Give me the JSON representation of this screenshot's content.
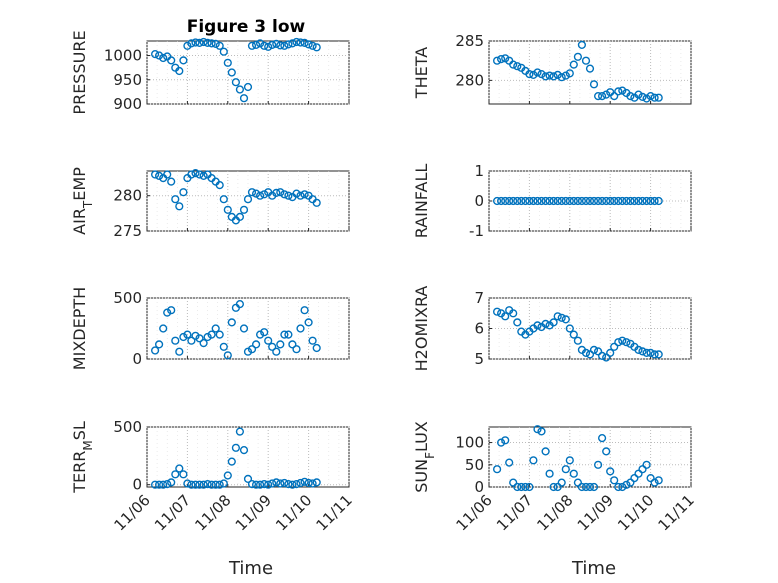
{
  "figure": {
    "title": "Figure 3 low"
  },
  "colors": {
    "series": "#0072BD",
    "axis": "#262626",
    "grid": "#bcbcbc"
  },
  "xaxis": {
    "label": "Time",
    "ticks": [
      "11/06",
      "11/07",
      "11/08",
      "11/09",
      "11/10",
      "11/11"
    ],
    "range": [
      "11/06",
      "11/11"
    ]
  },
  "chart_data": [
    {
      "type": "scatter",
      "title": "Figure 3 low",
      "ylabel": "PRESSURE",
      "ylim": [
        900,
        1030
      ],
      "yticks": [
        900,
        950,
        1000
      ],
      "yticklabels": [
        "900",
        "950",
        "1000"
      ],
      "grid": true,
      "x_dates": [
        "11/06",
        "11/11"
      ],
      "x": [
        6.2,
        6.3,
        6.4,
        6.5,
        6.6,
        6.7,
        6.8,
        6.9,
        7.0,
        7.1,
        7.2,
        7.3,
        7.4,
        7.5,
        7.6,
        7.7,
        7.8,
        7.9,
        8.0,
        8.1,
        8.2,
        8.3,
        8.4,
        8.5,
        8.6,
        8.7,
        8.8,
        8.9,
        9.0,
        9.1,
        9.2,
        9.3,
        9.4,
        9.5,
        9.6,
        9.7,
        9.8,
        9.9,
        10.0,
        10.1,
        10.2
      ],
      "y": [
        1003,
        1000,
        995,
        998,
        990,
        975,
        968,
        990,
        1020,
        1025,
        1027,
        1026,
        1028,
        1026,
        1025,
        1024,
        1020,
        1008,
        985,
        965,
        945,
        930,
        912,
        935,
        1020,
        1022,
        1025,
        1020,
        1018,
        1022,
        1024,
        1021,
        1020,
        1023,
        1025,
        1028,
        1027,
        1026,
        1023,
        1020,
        1017
      ]
    },
    {
      "type": "scatter",
      "title": "",
      "ylabel": "THETA",
      "ylim": [
        277,
        285
      ],
      "yticks": [
        280,
        285
      ],
      "yticklabels": [
        "280",
        "285"
      ],
      "grid": true,
      "x": [
        6.2,
        6.3,
        6.4,
        6.5,
        6.6,
        6.7,
        6.8,
        6.9,
        7.0,
        7.1,
        7.2,
        7.3,
        7.4,
        7.5,
        7.6,
        7.7,
        7.8,
        7.9,
        8.0,
        8.1,
        8.2,
        8.3,
        8.4,
        8.5,
        8.6,
        8.7,
        8.8,
        8.9,
        9.0,
        9.1,
        9.2,
        9.3,
        9.4,
        9.5,
        9.6,
        9.7,
        9.8,
        9.9,
        10.0,
        10.1,
        10.2
      ],
      "y": [
        282.5,
        282.7,
        282.8,
        282.5,
        282.0,
        281.8,
        281.6,
        281.2,
        280.8,
        280.7,
        281.0,
        280.8,
        280.5,
        280.6,
        280.5,
        280.7,
        280.4,
        280.6,
        280.9,
        282.0,
        283.0,
        284.5,
        282.5,
        281.5,
        279.5,
        278.0,
        278.0,
        278.2,
        278.5,
        278.0,
        278.6,
        278.7,
        278.4,
        278.0,
        277.8,
        278.2,
        277.9,
        277.7,
        278.0,
        277.8,
        277.8
      ]
    },
    {
      "type": "scatter",
      "title": "",
      "ylabel": "AIR_TEMP",
      "ylim": [
        275,
        283.5
      ],
      "yticks": [
        275,
        280
      ],
      "yticklabels": [
        "275",
        "280"
      ],
      "grid": true,
      "x": [
        6.2,
        6.3,
        6.4,
        6.5,
        6.6,
        6.7,
        6.8,
        6.9,
        7.0,
        7.1,
        7.2,
        7.3,
        7.4,
        7.5,
        7.6,
        7.7,
        7.8,
        7.9,
        8.0,
        8.1,
        8.2,
        8.3,
        8.4,
        8.5,
        8.6,
        8.7,
        8.8,
        8.9,
        9.0,
        9.1,
        9.2,
        9.3,
        9.4,
        9.5,
        9.6,
        9.7,
        9.8,
        9.9,
        10.0,
        10.1,
        10.2
      ],
      "y": [
        283.0,
        282.8,
        282.5,
        283.0,
        282.0,
        279.5,
        278.5,
        280.5,
        282.5,
        283.0,
        283.2,
        283.0,
        282.8,
        283.0,
        282.5,
        282.0,
        281.5,
        279.5,
        278.0,
        277.0,
        276.5,
        277.0,
        278.0,
        279.5,
        280.5,
        280.3,
        280.0,
        280.2,
        280.5,
        280.0,
        280.4,
        280.5,
        280.2,
        280.0,
        279.8,
        280.3,
        280.0,
        280.2,
        280.0,
        279.5,
        279.0
      ]
    },
    {
      "type": "scatter",
      "title": "",
      "ylabel": "RAINFALL",
      "ylim": [
        -1,
        1
      ],
      "yticks": [
        -1,
        0,
        1
      ],
      "yticklabels": [
        "-1",
        "0",
        "1"
      ],
      "grid": true,
      "x": [
        6.2,
        6.3,
        6.4,
        6.5,
        6.6,
        6.7,
        6.8,
        6.9,
        7.0,
        7.1,
        7.2,
        7.3,
        7.4,
        7.5,
        7.6,
        7.7,
        7.8,
        7.9,
        8.0,
        8.1,
        8.2,
        8.3,
        8.4,
        8.5,
        8.6,
        8.7,
        8.8,
        8.9,
        9.0,
        9.1,
        9.2,
        9.3,
        9.4,
        9.5,
        9.6,
        9.7,
        9.8,
        9.9,
        10.0,
        10.1,
        10.2
      ],
      "y": [
        0,
        0,
        0,
        0,
        0,
        0,
        0,
        0,
        0,
        0,
        0,
        0,
        0,
        0,
        0,
        0,
        0,
        0,
        0,
        0,
        0,
        0,
        0,
        0,
        0,
        0,
        0,
        0,
        0,
        0,
        0,
        0,
        0,
        0,
        0,
        0,
        0,
        0,
        0,
        0,
        0
      ]
    },
    {
      "type": "scatter",
      "title": "",
      "ylabel": "MIXDEPTH",
      "ylim": [
        0,
        500
      ],
      "yticks": [
        0,
        500
      ],
      "yticklabels": [
        "0",
        "500"
      ],
      "grid": true,
      "x": [
        6.2,
        6.3,
        6.4,
        6.5,
        6.6,
        6.7,
        6.8,
        6.9,
        7.0,
        7.1,
        7.2,
        7.3,
        7.4,
        7.5,
        7.6,
        7.7,
        7.8,
        7.9,
        8.0,
        8.1,
        8.2,
        8.3,
        8.4,
        8.5,
        8.6,
        8.7,
        8.8,
        8.9,
        9.0,
        9.1,
        9.2,
        9.3,
        9.4,
        9.5,
        9.6,
        9.7,
        9.8,
        9.9,
        10.0,
        10.1,
        10.2
      ],
      "y": [
        70,
        120,
        250,
        380,
        400,
        150,
        60,
        180,
        200,
        150,
        190,
        170,
        130,
        180,
        200,
        250,
        200,
        100,
        30,
        300,
        420,
        450,
        250,
        60,
        80,
        120,
        200,
        220,
        150,
        100,
        60,
        120,
        200,
        200,
        120,
        80,
        250,
        400,
        300,
        150,
        90
      ]
    },
    {
      "type": "scatter",
      "title": "",
      "ylabel": "H2OMIXRA",
      "ylim": [
        5,
        7
      ],
      "yticks": [
        5,
        6,
        7
      ],
      "yticklabels": [
        "5",
        "6",
        "7"
      ],
      "grid": true,
      "x": [
        6.2,
        6.3,
        6.4,
        6.5,
        6.6,
        6.7,
        6.8,
        6.9,
        7.0,
        7.1,
        7.2,
        7.3,
        7.4,
        7.5,
        7.6,
        7.7,
        7.8,
        7.9,
        8.0,
        8.1,
        8.2,
        8.3,
        8.4,
        8.5,
        8.6,
        8.7,
        8.8,
        8.9,
        9.0,
        9.1,
        9.2,
        9.3,
        9.4,
        9.5,
        9.6,
        9.7,
        9.8,
        9.9,
        10.0,
        10.1,
        10.2
      ],
      "y": [
        6.55,
        6.5,
        6.4,
        6.6,
        6.5,
        6.2,
        5.9,
        5.8,
        5.9,
        6.0,
        6.1,
        6.05,
        6.15,
        6.1,
        6.2,
        6.4,
        6.35,
        6.3,
        6.0,
        5.8,
        5.6,
        5.3,
        5.2,
        5.15,
        5.3,
        5.25,
        5.1,
        5.05,
        5.2,
        5.4,
        5.55,
        5.6,
        5.55,
        5.5,
        5.4,
        5.3,
        5.25,
        5.2,
        5.2,
        5.15,
        5.15
      ]
    },
    {
      "type": "scatter",
      "title": "",
      "ylabel": "TERR_MSL",
      "ylim": [
        -20,
        500
      ],
      "yticks": [
        0,
        500
      ],
      "yticklabels": [
        "0",
        "500"
      ],
      "grid": true,
      "x": [
        6.2,
        6.3,
        6.4,
        6.5,
        6.6,
        6.7,
        6.8,
        6.9,
        7.0,
        7.1,
        7.2,
        7.3,
        7.4,
        7.5,
        7.6,
        7.7,
        7.8,
        7.9,
        8.0,
        8.1,
        8.2,
        8.3,
        8.4,
        8.5,
        8.6,
        8.7,
        8.8,
        8.9,
        9.0,
        9.1,
        9.2,
        9.3,
        9.4,
        9.5,
        9.6,
        9.7,
        9.8,
        9.9,
        10.0,
        10.1,
        10.2
      ],
      "y": [
        0,
        0,
        0,
        5,
        20,
        90,
        140,
        90,
        10,
        0,
        0,
        0,
        0,
        5,
        0,
        0,
        0,
        10,
        80,
        200,
        320,
        460,
        300,
        50,
        5,
        0,
        0,
        5,
        0,
        10,
        20,
        10,
        15,
        5,
        0,
        5,
        15,
        25,
        15,
        10,
        20
      ]
    },
    {
      "type": "scatter",
      "title": "",
      "ylabel": "SUN_FLUX",
      "ylim": [
        0,
        135
      ],
      "yticks": [
        0,
        50,
        100
      ],
      "yticklabels": [
        "0",
        "50",
        "100"
      ],
      "grid": true,
      "x": [
        6.2,
        6.3,
        6.4,
        6.5,
        6.6,
        6.7,
        6.8,
        6.9,
        7.0,
        7.1,
        7.2,
        7.3,
        7.4,
        7.5,
        7.6,
        7.7,
        7.8,
        7.9,
        8.0,
        8.1,
        8.2,
        8.3,
        8.4,
        8.5,
        8.6,
        8.7,
        8.8,
        8.9,
        9.0,
        9.1,
        9.2,
        9.3,
        9.4,
        9.5,
        9.6,
        9.7,
        9.8,
        9.9,
        10.0,
        10.1,
        10.2
      ],
      "y": [
        40,
        100,
        105,
        55,
        10,
        0,
        0,
        0,
        0,
        60,
        130,
        125,
        80,
        30,
        0,
        0,
        10,
        40,
        60,
        30,
        10,
        0,
        0,
        0,
        0,
        50,
        110,
        80,
        35,
        15,
        0,
        0,
        5,
        10,
        20,
        30,
        40,
        50,
        20,
        10,
        15
      ]
    }
  ]
}
